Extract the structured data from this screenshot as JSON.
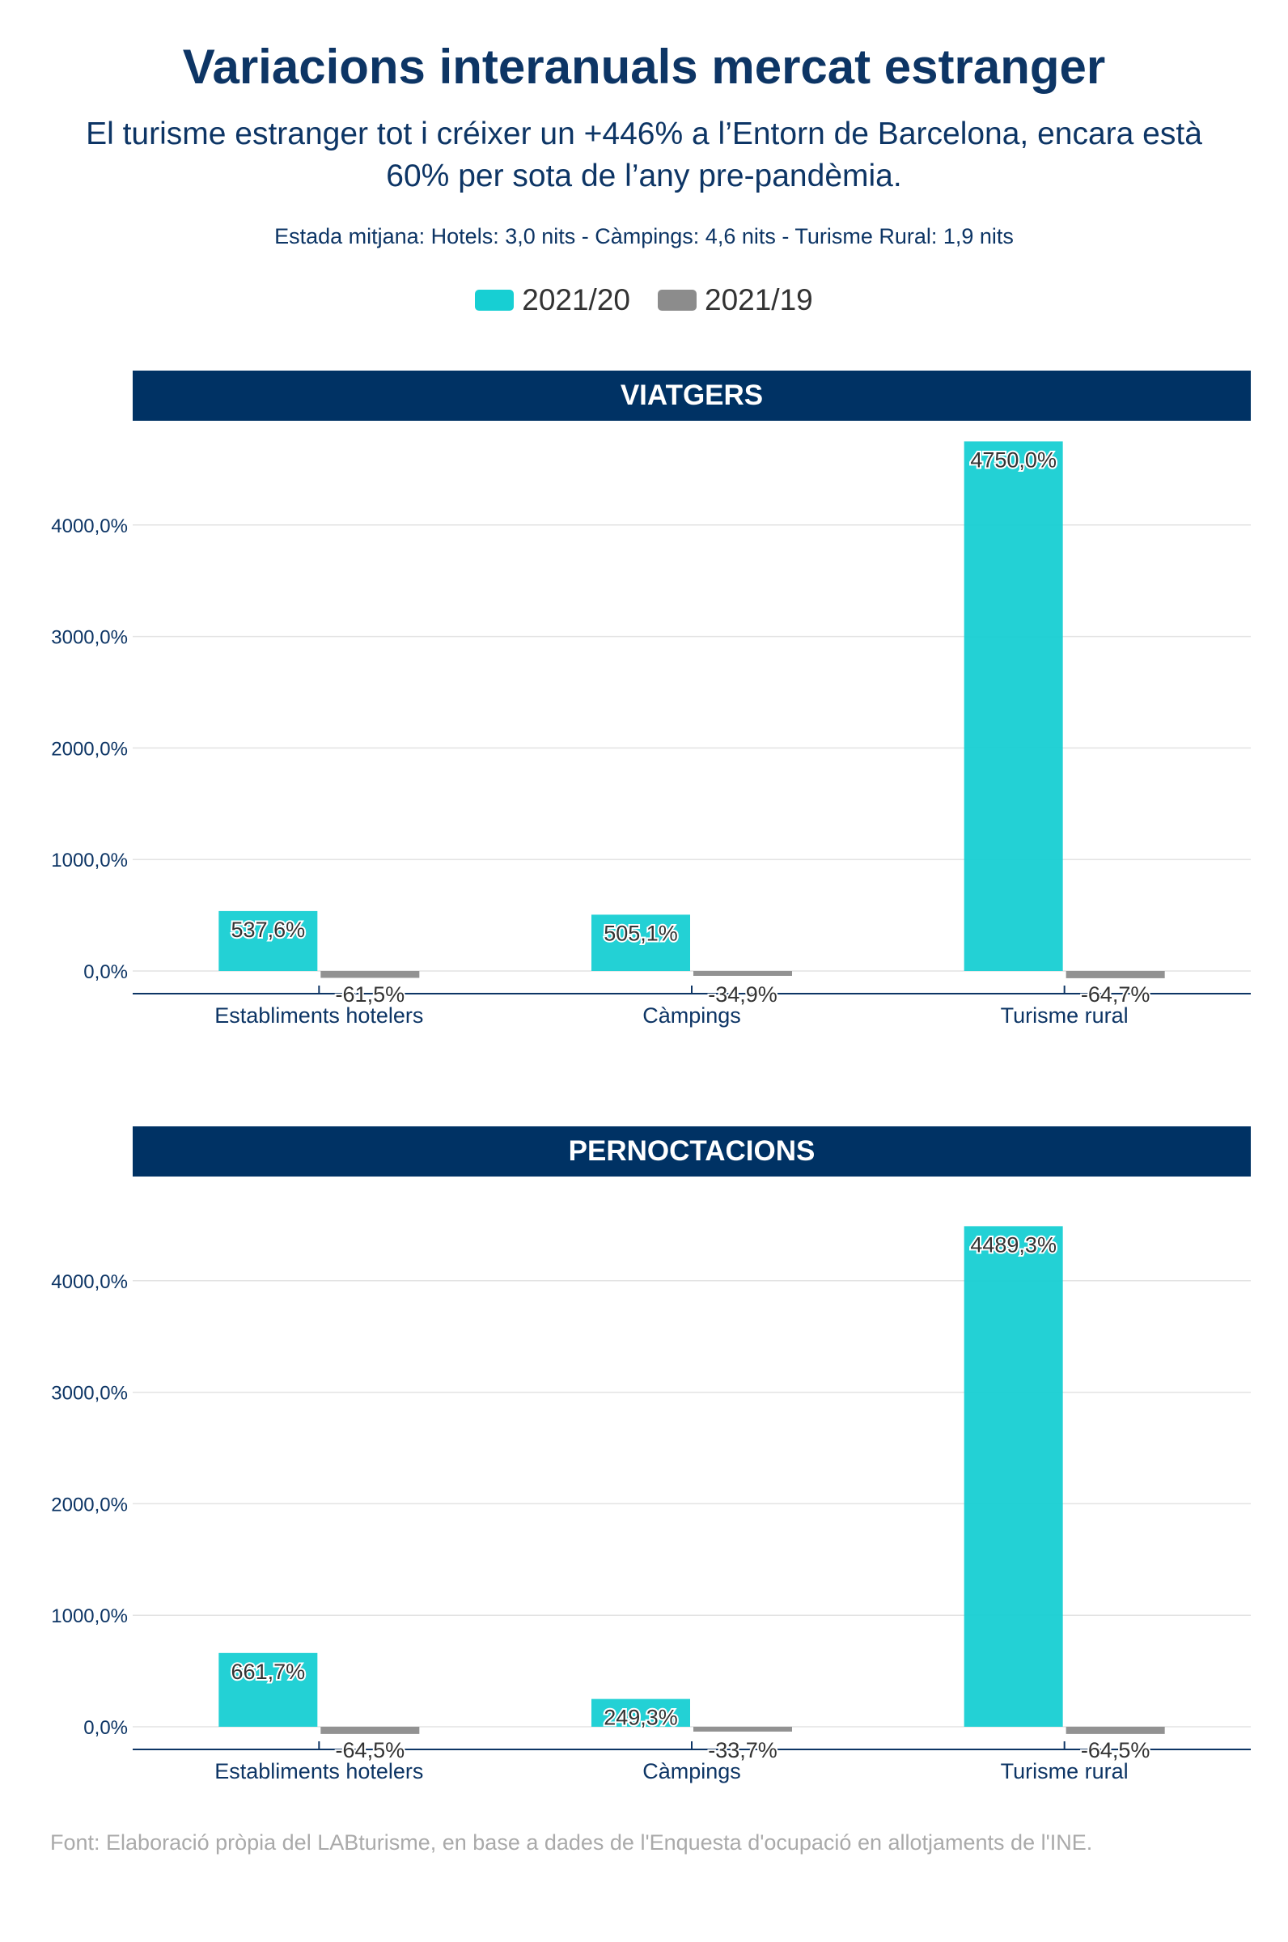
{
  "title": "Variacions interanuals mercat estranger",
  "subtitle": "El turisme estranger tot i créixer un +446% a l’Entorn de Barcelona, encara està 60% per sota de l’any pre-pandèmia.",
  "note": "Estada mitjana: Hotels: 3,0 nits - Càmpings: 4,6 nits - Turisme Rural: 1,9 nits",
  "legend": [
    {
      "label": "2021/20",
      "color": "#17cfd3"
    },
    {
      "label": "2021/19",
      "color": "#8c8c8c"
    }
  ],
  "source": "Font: Elaboració pròpia del LABturisme, en base a dades de l'Enquesta d'ocupació en allotjaments de l'INE.",
  "chart_data": [
    {
      "type": "bar",
      "title": "VIATGERS",
      "categories": [
        "Establiments hotelers",
        "Càmpings",
        "Turisme rural"
      ],
      "series": [
        {
          "name": "2021/20",
          "values": [
            537.6,
            505.1,
            4750.0
          ],
          "labels": [
            "537,6%",
            "505,1%",
            "4750,0%"
          ],
          "color": "#17cfd3"
        },
        {
          "name": "2021/19",
          "values": [
            -61.5,
            -34.9,
            -64.7
          ],
          "labels": [
            "-61,5%",
            "-34,9%",
            "-64,7%"
          ],
          "color": "#8c8c8c"
        }
      ],
      "yticks": [
        0,
        1000,
        2000,
        3000,
        4000
      ],
      "ytick_labels": [
        "0,0%",
        "1000,0%",
        "2000,0%",
        "3000,0%",
        "4000,0%"
      ],
      "ylim": [
        -200,
        4780
      ],
      "grid": true
    },
    {
      "type": "bar",
      "title": "PERNOCTACIONS",
      "categories": [
        "Establiments hotelers",
        "Càmpings",
        "Turisme rural"
      ],
      "series": [
        {
          "name": "2021/20",
          "values": [
            661.7,
            249.3,
            4489.3
          ],
          "labels": [
            "661,7%",
            "249,3%",
            "4489,3%"
          ],
          "color": "#17cfd3"
        },
        {
          "name": "2021/19",
          "values": [
            -64.5,
            -33.7,
            -64.5
          ],
          "labels": [
            "-64,5%",
            "-33,7%",
            "-64,5%"
          ],
          "color": "#8c8c8c"
        }
      ],
      "yticks": [
        0,
        1000,
        2000,
        3000,
        4000
      ],
      "ytick_labels": [
        "0,0%",
        "1000,0%",
        "2000,0%",
        "3000,0%",
        "4000,0%"
      ],
      "ylim": [
        -200,
        4780
      ],
      "grid": true
    }
  ]
}
